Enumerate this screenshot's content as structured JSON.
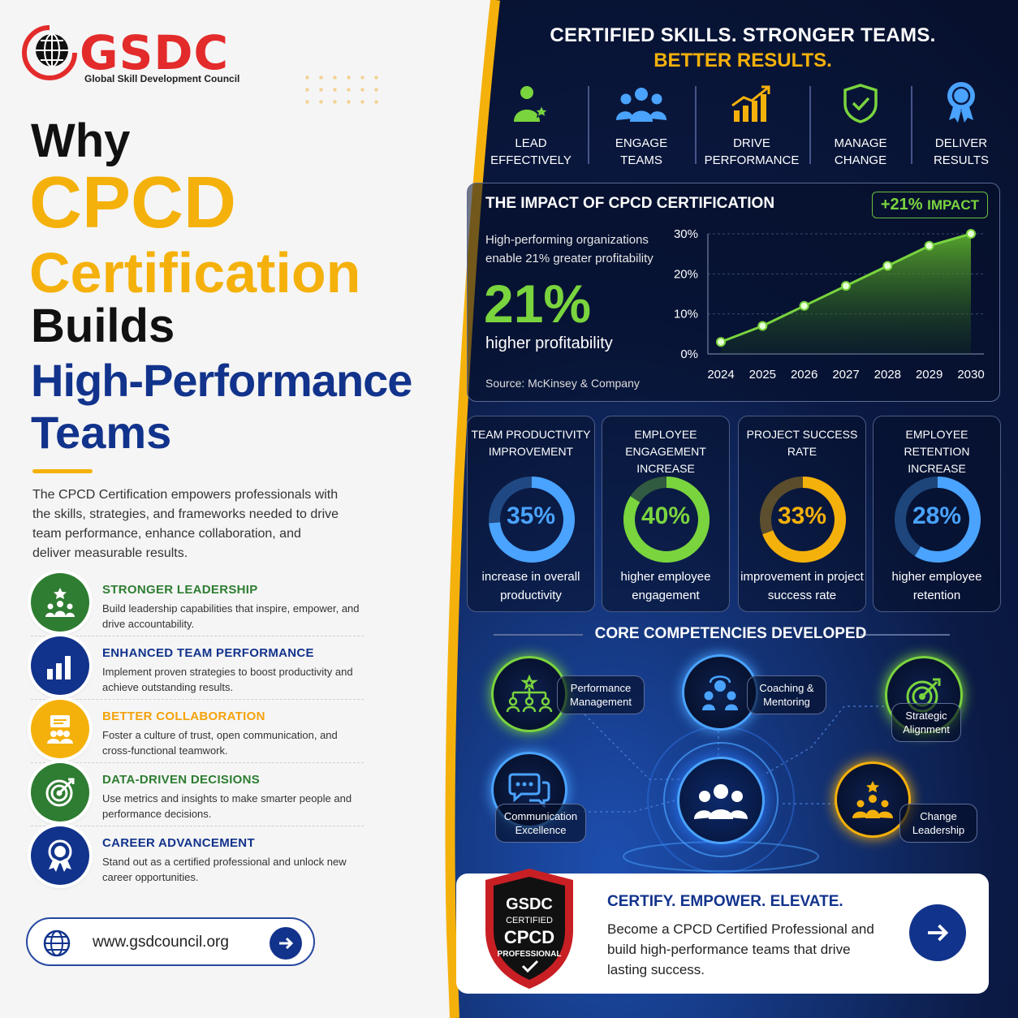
{
  "brand": {
    "name": "GSDC",
    "subtitle": "Global Skill Development Council"
  },
  "headline": {
    "line1": "Why",
    "line2": "CPCD",
    "line3": "Certification",
    "line4": "Builds",
    "line5": "High-Performance",
    "line6": "Teams"
  },
  "intro": "The CPCD Certification empowers professionals with the skills, strategies, and frameworks needed to drive team performance, enhance collaboration, and deliver measurable results.",
  "features": [
    {
      "title": "STRONGER LEADERSHIP",
      "desc": "Build leadership capabilities that inspire, empower, and drive accountability.",
      "color": "#2e7d32",
      "icon": "leadership-icon"
    },
    {
      "title": "ENHANCED TEAM PERFORMANCE",
      "desc": "Implement proven strategies to boost productivity and achieve outstanding results.",
      "color": "#12338c",
      "icon": "bar-chart-icon"
    },
    {
      "title": "BETTER COLLABORATION",
      "desc": "Foster a culture of trust, open communication, and cross-functional teamwork.",
      "color": "#f5b10b",
      "icon": "collaboration-icon"
    },
    {
      "title": "DATA-DRIVEN DECISIONS",
      "desc": "Use metrics and insights to make smarter people and performance decisions.",
      "color": "#2e7d32",
      "icon": "target-icon"
    },
    {
      "title": "CAREER ADVANCEMENT",
      "desc": "Stand out as a certified professional and unlock new career opportunities.",
      "color": "#12338c",
      "icon": "award-icon"
    }
  ],
  "website": "www.gsdcouncil.org",
  "tagline": {
    "line1": "CERTIFIED SKILLS. STRONGER TEAMS.",
    "line2": "BETTER RESULTS."
  },
  "pillars": [
    {
      "line1": "LEAD",
      "line2": "EFFECTIVELY",
      "icon": "leader-star-icon"
    },
    {
      "line1": "ENGAGE",
      "line2": "TEAMS",
      "icon": "team-icon"
    },
    {
      "line1": "DRIVE",
      "line2": "PERFORMANCE",
      "icon": "growth-chart-icon"
    },
    {
      "line1": "MANAGE",
      "line2": "CHANGE",
      "icon": "shield-check-icon"
    },
    {
      "line1": "DELIVER",
      "line2": "RESULTS",
      "icon": "medal-icon"
    }
  ],
  "impact": {
    "title": "THE IMPACT OF CPCD CERTIFICATION",
    "badge_value": "+21%",
    "badge_label": "IMPACT",
    "desc": "High-performing organizations enable 21% greater profitability",
    "big": "21%",
    "sub": "higher profitability",
    "source": "Source: McKinsey & Company"
  },
  "chart_data": {
    "type": "line",
    "x": [
      "2024",
      "2025",
      "2026",
      "2027",
      "2028",
      "2029",
      "2030"
    ],
    "values": [
      3,
      7,
      12,
      17,
      22,
      27,
      30
    ],
    "ylim": [
      0,
      30
    ],
    "yticks": [
      "0%",
      "10%",
      "20%",
      "30%"
    ],
    "color": "#7ad43e"
  },
  "stats": [
    {
      "h1": "TEAM PRODUCTIVITY",
      "h2": "IMPROVEMENT",
      "pct": "35%",
      "value": 35,
      "f1": "increase in overall",
      "f2": "productivity",
      "color": "#4aa3ff"
    },
    {
      "h1": "EMPLOYEE ENGAGEMENT",
      "h2": "INCREASE",
      "pct": "40%",
      "value": 40,
      "f1": "higher employee",
      "f2": "engagement",
      "color": "#7ad43e"
    },
    {
      "h1": "PROJECT SUCCESS",
      "h2": "RATE",
      "pct": "33%",
      "value": 33,
      "f1": "improvement in project",
      "f2": "success rate",
      "color": "#f5b10b"
    },
    {
      "h1": "EMPLOYEE RETENTION",
      "h2": "INCREASE",
      "pct": "28%",
      "value": 28,
      "f1": "higher employee",
      "f2": "retention",
      "color": "#4aa3ff"
    }
  ],
  "core": {
    "title": "CORE COMPETENCIES DEVELOPED",
    "items": [
      {
        "l1": "Performance",
        "l2": "Management",
        "color": "#7ad43e",
        "icon": "team-hierarchy-icon"
      },
      {
        "l1": "Coaching &",
        "l2": "Mentoring",
        "color": "#4aa3ff",
        "icon": "coaching-icon"
      },
      {
        "l1": "Strategic",
        "l2": "Alignment",
        "color": "#7ad43e",
        "icon": "target-icon"
      },
      {
        "l1": "Communication",
        "l2": "Excellence",
        "color": "#4aa3ff",
        "icon": "chat-icon"
      },
      {
        "l1": "Change",
        "l2": "Leadership",
        "color": "#f5b10b",
        "icon": "change-leader-icon"
      }
    ]
  },
  "cta": {
    "head": "CERTIFY. EMPOWER. ELEVATE.",
    "body": "Become a CPCD Certified Professional and build high-performance teams that drive lasting success.",
    "badge": {
      "l1": "GSDC",
      "l2": "CERTIFIED",
      "l3": "CPCD",
      "l4": "PROFESSIONAL"
    }
  }
}
